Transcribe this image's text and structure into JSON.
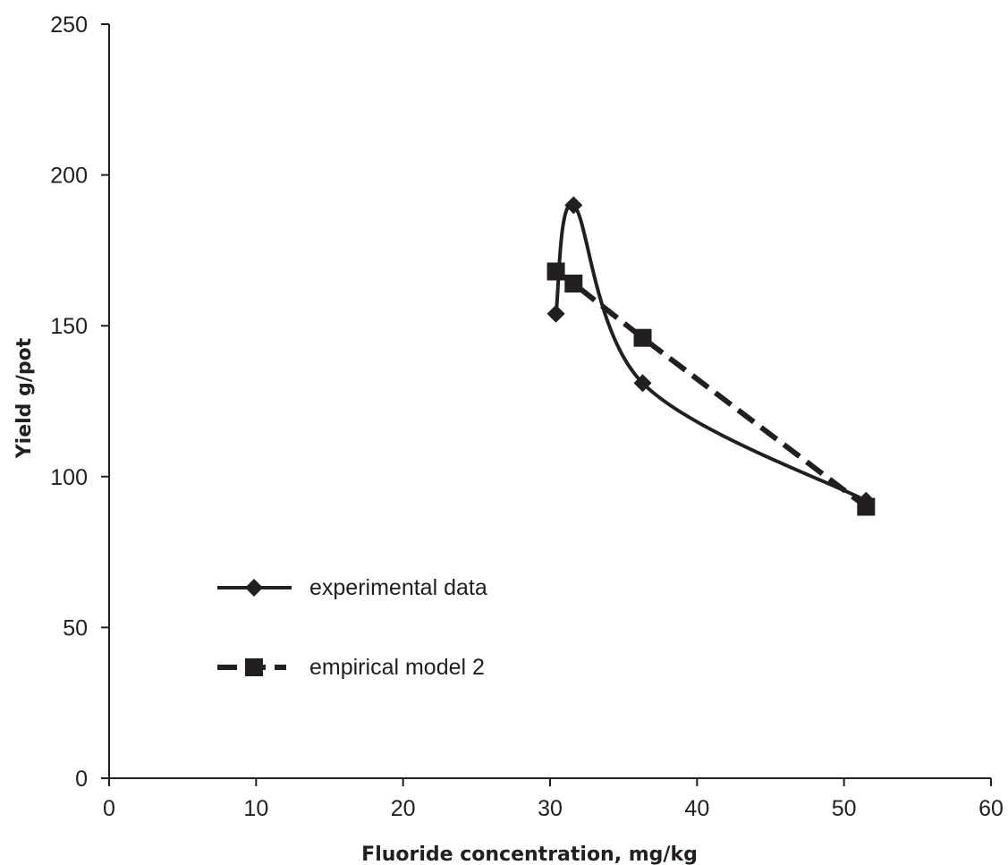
{
  "chart_data": {
    "type": "line",
    "title": "",
    "xlabel": "Fluoride concentration, mg/kg",
    "ylabel": "Yield g/pot",
    "xlim": [
      0,
      60
    ],
    "ylim": [
      0,
      250
    ],
    "x_ticks": [
      0,
      10,
      20,
      30,
      40,
      50,
      60
    ],
    "y_ticks": [
      0,
      50,
      100,
      150,
      200,
      250
    ],
    "grid": false,
    "legend_position": "lower-left",
    "series": [
      {
        "name": "experimental data",
        "marker": "diamond",
        "line_style": "solid-smooth",
        "color": "#231f20",
        "x": [
          30.4,
          31.6,
          36.3,
          51.5
        ],
        "y": [
          154,
          190,
          131,
          92
        ]
      },
      {
        "name": "empirical model 2",
        "marker": "square",
        "line_style": "dashed",
        "color": "#231f20",
        "x": [
          30.4,
          31.6,
          36.3,
          51.5
        ],
        "y": [
          168,
          164,
          146,
          90
        ]
      }
    ]
  }
}
